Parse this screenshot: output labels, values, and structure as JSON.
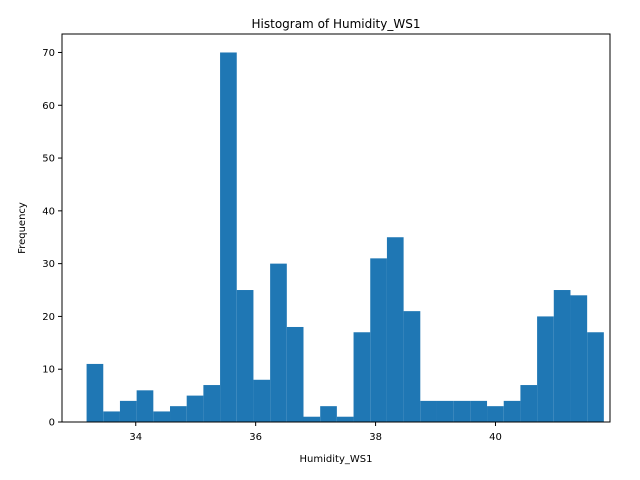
{
  "chart_data": {
    "type": "bar",
    "title": "Histogram of Humidity_WS1",
    "xlabel": "Humidity_WS1",
    "ylabel": "Frequency",
    "xlim": [
      32.77,
      41.91
    ],
    "ylim": [
      0,
      73.5
    ],
    "xticks": [
      34,
      36,
      38,
      40
    ],
    "yticks": [
      0,
      10,
      20,
      30,
      40,
      50,
      60,
      70
    ],
    "bin_start": 33.18,
    "bin_width": 0.2783,
    "bar_color": "#1f77b4",
    "grid": false,
    "legend": "none",
    "values": [
      11,
      2,
      4,
      6,
      2,
      3,
      5,
      7,
      70,
      25,
      8,
      30,
      18,
      1,
      3,
      1,
      17,
      31,
      35,
      21,
      4,
      4,
      4,
      4,
      3,
      4,
      7,
      20,
      25,
      24,
      17
    ]
  }
}
